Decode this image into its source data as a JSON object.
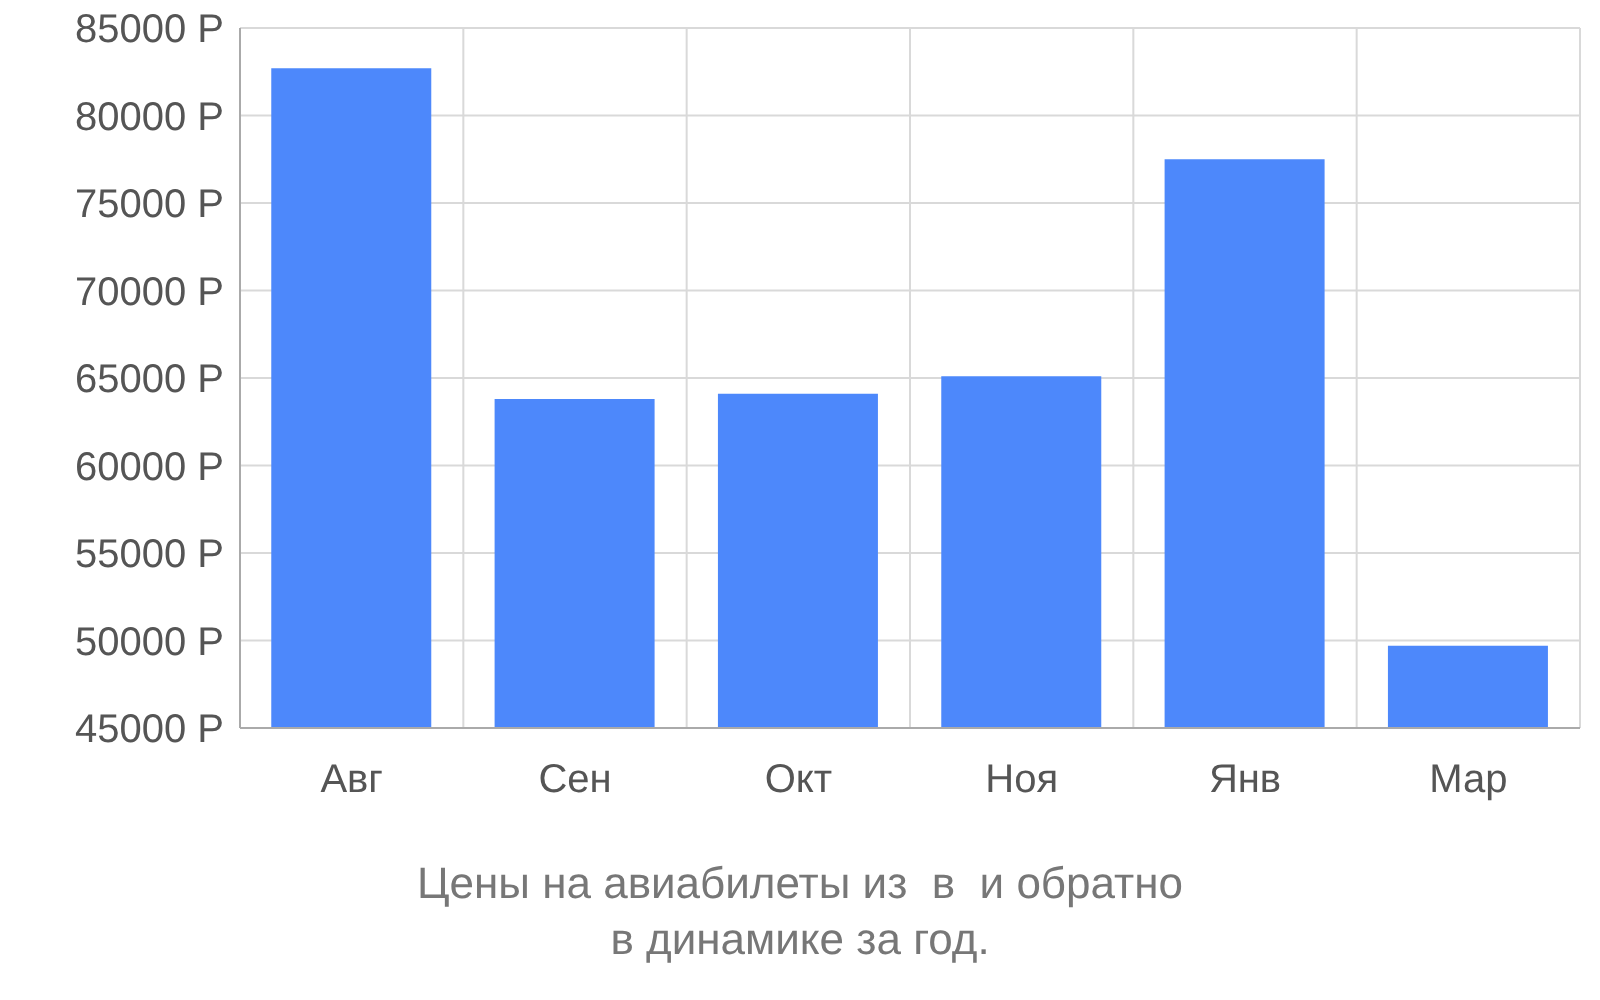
{
  "chart_data": {
    "type": "bar",
    "title": "Цены на авиабилеты из  в  и обратно",
    "subtitle": "в динамике за год.",
    "categories": [
      "Авг",
      "Сен",
      "Окт",
      "Ноя",
      "Янв",
      "Мар"
    ],
    "values": [
      82700,
      63800,
      64100,
      65100,
      77500,
      49700
    ],
    "color": "#4d88fb",
    "ylim": [
      45000,
      85000
    ],
    "yticks": [
      {
        "value": 45000,
        "label": "45000 Р"
      },
      {
        "value": 50000,
        "label": "50000 Р"
      },
      {
        "value": 55000,
        "label": "55000 Р"
      },
      {
        "value": 60000,
        "label": "60000 Р"
      },
      {
        "value": 65000,
        "label": "65000 Р"
      },
      {
        "value": 70000,
        "label": "70000 Р"
      },
      {
        "value": 75000,
        "label": "75000 Р"
      },
      {
        "value": 80000,
        "label": "80000 Р"
      },
      {
        "value": 85000,
        "label": "85000 Р"
      }
    ],
    "grid": true,
    "legend": false
  }
}
